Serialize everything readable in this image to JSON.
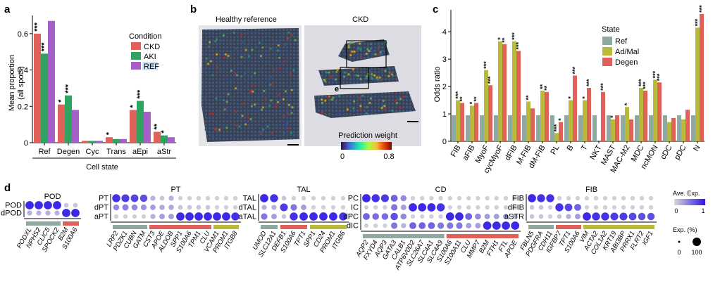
{
  "panels": {
    "a": {
      "letter": "a",
      "legend_title": "Condition",
      "legend": [
        "CKD",
        "AKI",
        "REF"
      ],
      "colors": {
        "CKD": "#e0605a",
        "AKI": "#2fa35f",
        "REF": "#a560c8"
      },
      "chart_data": {
        "type": "bar",
        "title": "",
        "xlabel": "Cell state",
        "ylabel": "Mean proportion\n(all spots)",
        "ylabel_line1": "Mean proportion",
        "ylabel_line2": "(all spots)",
        "ylim": [
          0,
          0.7
        ],
        "yticks": [
          0,
          0.2,
          0.4,
          0.6
        ],
        "ytick_labels": [
          "0",
          "0.2",
          "0.4",
          "0.6"
        ],
        "categories": [
          "Ref",
          "Degen",
          "Cyc",
          "Trans",
          "aEpi",
          "aStr"
        ],
        "series": [
          {
            "name": "CKD",
            "values": [
              0.6,
              0.21,
              0.01,
              0.03,
              0.18,
              0.06
            ]
          },
          {
            "name": "AKI",
            "values": [
              0.49,
              0.26,
              0.01,
              0.02,
              0.23,
              0.04
            ]
          },
          {
            "name": "REF",
            "values": [
              0.67,
              0.18,
              0.01,
              0.02,
              0.17,
              0.03
            ]
          }
        ],
        "annotations": [
          {
            "category": "Ref",
            "series": "CKD",
            "text": "***"
          },
          {
            "category": "Ref",
            "series": "AKI",
            "text": "***"
          },
          {
            "category": "Degen",
            "series": "CKD",
            "text": "*"
          },
          {
            "category": "Degen",
            "series": "AKI",
            "text": "***"
          },
          {
            "category": "Trans",
            "series": "CKD",
            "text": "*"
          },
          {
            "category": "aEpi",
            "series": "CKD",
            "text": "*"
          },
          {
            "category": "aEpi",
            "series": "AKI",
            "text": "***"
          },
          {
            "category": "aStr",
            "series": "CKD",
            "text": "**"
          },
          {
            "category": "aStr",
            "series": "AKI",
            "text": "*"
          }
        ]
      }
    },
    "b": {
      "letter": "b",
      "left_title": "Healthy reference",
      "right_title": "CKD",
      "inset_label": "e",
      "colorbar_title": "Prediction weight",
      "colorbar_min": "0",
      "colorbar_max": "0.8"
    },
    "c": {
      "letter": "c",
      "legend_title": "State",
      "legend": [
        "Ref",
        "Ad/Mal",
        "Degen"
      ],
      "colors": {
        "Ref": "#8fa8a0",
        "Ad/Mal": "#b9b93a",
        "Degen": "#e0605a"
      },
      "chart_data": {
        "type": "bar",
        "title": "",
        "xlabel": "",
        "ylabel": "Odds ratio",
        "ylim": [
          0,
          4.8
        ],
        "yticks": [
          0,
          1,
          2,
          3,
          4
        ],
        "ytick_labels": [
          "0",
          "1",
          "2",
          "3",
          "4"
        ],
        "categories": [
          "FIB",
          "aFIB",
          "MyoF",
          "cycMyoF",
          "dFIB",
          "M-FIB",
          "dM-FIB",
          "PL",
          "B",
          "T",
          "NKT",
          "MAST",
          "MAC-M2",
          "MDC",
          "ncMON",
          "cDC",
          "pDC",
          "N"
        ],
        "series": [
          {
            "name": "Ref",
            "values": [
              0.95,
              0.95,
              0.95,
              0.95,
              0.95,
              0.95,
              0.95,
              0.95,
              0.95,
              0.95,
              0.95,
              0.95,
              0.95,
              0.95,
              0.95,
              0.95,
              0.95,
              0.95
            ]
          },
          {
            "name": "Ad/Mal",
            "values": [
              1.5,
              1.3,
              2.6,
              3.65,
              3.65,
              1.45,
              1.85,
              0.3,
              1.5,
              1.5,
              null,
              0.8,
              1.25,
              1.95,
              2.25,
              0.7,
              0.8,
              4.15
            ]
          },
          {
            "name": "Degen",
            "values": [
              1.4,
              1.4,
              2.05,
              3.55,
              3.3,
              1.2,
              1.8,
              0.7,
              2.4,
              1.95,
              1.8,
              0.95,
              0.8,
              1.85,
              2.15,
              0.85,
              1.15,
              4.65
            ]
          }
        ],
        "annotations": [
          {
            "category": "FIB",
            "series": "Ad/Mal",
            "text": "***"
          },
          {
            "category": "FIB",
            "series": "Degen",
            "text": "**"
          },
          {
            "category": "aFIB",
            "series": "Ad/Mal",
            "text": "*"
          },
          {
            "category": "aFIB",
            "series": "Degen",
            "text": "**"
          },
          {
            "category": "MyoF",
            "series": "Ad/Mal",
            "text": "***"
          },
          {
            "category": "MyoF",
            "series": "Degen",
            "text": "***"
          },
          {
            "category": "cycMyoF",
            "series": "Ad/Mal",
            "text": "*"
          },
          {
            "category": "cycMyoF",
            "series": "Degen",
            "text": "**"
          },
          {
            "category": "dFIB",
            "series": "Ad/Mal",
            "text": "***"
          },
          {
            "category": "dFIB",
            "series": "Degen",
            "text": "***"
          },
          {
            "category": "M-FIB",
            "series": "Ad/Mal",
            "text": "**"
          },
          {
            "category": "dM-FIB",
            "series": "Ad/Mal",
            "text": "**"
          },
          {
            "category": "dM-FIB",
            "series": "Degen",
            "text": "**"
          },
          {
            "category": "PL",
            "series": "Ad/Mal",
            "text": "***"
          },
          {
            "category": "PL",
            "series": "Degen",
            "text": "*"
          },
          {
            "category": "B",
            "series": "Ad/Mal",
            "text": "*"
          },
          {
            "category": "B",
            "series": "Degen",
            "text": "***"
          },
          {
            "category": "T",
            "series": "Ad/Mal",
            "text": "*"
          },
          {
            "category": "T",
            "series": "Degen",
            "text": "***"
          },
          {
            "category": "NKT",
            "series": "Degen",
            "text": "***"
          },
          {
            "category": "MAST",
            "series": "Ad/Mal",
            "text": "*"
          },
          {
            "category": "MAC-M2",
            "series": "Ad/Mal",
            "text": "*"
          },
          {
            "category": "MDC",
            "series": "Ad/Mal",
            "text": "***"
          },
          {
            "category": "MDC",
            "series": "Degen",
            "text": "***"
          },
          {
            "category": "ncMON",
            "series": "Ad/Mal",
            "text": "***"
          },
          {
            "category": "ncMON",
            "series": "Degen",
            "text": "***"
          },
          {
            "category": "N",
            "series": "Ad/Mal",
            "text": "***"
          },
          {
            "category": "N",
            "series": "Degen",
            "text": "***"
          }
        ]
      }
    },
    "d": {
      "letter": "d",
      "groups": [
        {
          "title": "POD",
          "rows": [
            "POD",
            "dPOD"
          ],
          "genes": [
            "PODXL",
            "NPHS2",
            "CLIC5",
            "SPOCK2",
            "B2M",
            "S100A6"
          ],
          "bars": [
            {
              "span": [
                0,
                3
              ],
              "color": "#8fa8a0"
            },
            {
              "span": [
                4,
                5
              ],
              "color": "#e0605a"
            }
          ],
          "values": [
            [
              0.9,
              0.9,
              0.9,
              0.9,
              0.1,
              0.1
            ],
            [
              0.2,
              0.2,
              0.2,
              0.2,
              0.9,
              0.9
            ]
          ]
        },
        {
          "title": "PT",
          "rows": [
            "PT",
            "dPT",
            "aPT"
          ],
          "genes": [
            "LRP2",
            "PDZK1",
            "CUBN",
            "GATM",
            "CST3",
            "APOE",
            "ALDOB",
            "SPP1",
            "S100A6",
            "TPM1",
            "CLU",
            "VCAM1",
            "PROM1",
            "ITGB8"
          ],
          "bars": [
            {
              "span": [
                0,
                3
              ],
              "color": "#8fa8a0"
            },
            {
              "span": [
                4,
                10
              ],
              "color": "#e0605a"
            },
            {
              "span": [
                11,
                13
              ],
              "color": "#b9b93a"
            }
          ],
          "values": [
            [
              0.85,
              0.8,
              0.75,
              0.7,
              0.2,
              0.1,
              0.2,
              0.05,
              0.05,
              0.05,
              0.05,
              0.05,
              0.05,
              0.05
            ],
            [
              0.4,
              0.45,
              0.4,
              0.35,
              0.3,
              0.25,
              0.25,
              0.1,
              0.1,
              0.1,
              0.1,
              0.05,
              0.05,
              0.05
            ],
            [
              0.05,
              0.05,
              0.05,
              0.05,
              0.2,
              0.3,
              0.3,
              0.9,
              0.9,
              0.9,
              0.9,
              0.9,
              0.9,
              0.85
            ]
          ]
        },
        {
          "title": "TAL",
          "rows": [
            "TAL",
            "dTAL",
            "aTAL"
          ],
          "genes": [
            "UMOD",
            "SLC12A1",
            "DEFB1",
            "S100A6",
            "TPT1",
            "SPP1",
            "CD24",
            "PROM1",
            "ITGB6"
          ],
          "bars": [
            {
              "span": [
                0,
                1
              ],
              "color": "#8fa8a0"
            },
            {
              "span": [
                2,
                4
              ],
              "color": "#e0605a"
            },
            {
              "span": [
                5,
                8
              ],
              "color": "#b9b93a"
            }
          ],
          "values": [
            [
              0.9,
              0.85,
              0.1,
              0.05,
              0.05,
              0.05,
              0.05,
              0.05,
              0.05
            ],
            [
              0.2,
              0.2,
              0.8,
              0.5,
              0.3,
              0.05,
              0.05,
              0.05,
              0.05
            ],
            [
              0.5,
              0.3,
              0.1,
              0.85,
              0.9,
              0.9,
              0.9,
              0.9,
              0.85
            ]
          ]
        },
        {
          "title": "CD",
          "rows": [
            "PC",
            "IC",
            "dPC",
            "dIC"
          ],
          "genes": [
            "AQP2",
            "FXYD4",
            "AQP3",
            "GATA3",
            "CALB1",
            "ATP6V0D2",
            "SLC26A7",
            "SLC4A1",
            "SLC4A9",
            "S100A6",
            "S100A11",
            "CLU",
            "MMP7",
            "B2M",
            "FTH1",
            "FTL",
            "APOE"
          ],
          "bars": [
            {
              "span": [
                0,
                8
              ],
              "color": "#8fa8a0"
            },
            {
              "span": [
                9,
                16
              ],
              "color": "#e0605a"
            }
          ],
          "values": [
            [
              0.9,
              0.85,
              0.8,
              0.6,
              0.4,
              0.05,
              0.05,
              0.05,
              0.05,
              0.05,
              0.05,
              0.05,
              0.05,
              0.05,
              0.05,
              0.05,
              0.05
            ],
            [
              0.05,
              0.05,
              0.05,
              0.5,
              0.3,
              0.9,
              0.9,
              0.9,
              0.85,
              0.05,
              0.05,
              0.05,
              0.05,
              0.05,
              0.05,
              0.05,
              0.05
            ],
            [
              0.6,
              0.55,
              0.55,
              0.7,
              0.4,
              0.05,
              0.05,
              0.05,
              0.05,
              0.9,
              0.9,
              0.6,
              0.4,
              0.3,
              0.3,
              0.3,
              0.2
            ],
            [
              0.05,
              0.05,
              0.05,
              0.5,
              0.2,
              0.6,
              0.6,
              0.6,
              0.5,
              0.5,
              0.5,
              0.3,
              0.3,
              0.9,
              0.9,
              0.9,
              0.9
            ]
          ]
        },
        {
          "title": "FIB",
          "rows": [
            "FIB",
            "dFIB",
            "aSTR"
          ],
          "genes": [
            "FBLN5",
            "PDGFRA",
            "CDH11",
            "IGFBP7",
            "TPT1",
            "S100A6",
            "VIM",
            "ACTA2",
            "COL1A2",
            "KRT19",
            "ABI3BP",
            "PRRX1",
            "FLRT2",
            "IGF1"
          ],
          "bars": [
            {
              "span": [
                0,
                2
              ],
              "color": "#8fa8a0"
            },
            {
              "span": [
                3,
                5
              ],
              "color": "#e0605a"
            },
            {
              "span": [
                6,
                13
              ],
              "color": "#b9b93a"
            }
          ],
          "values": [
            [
              0.9,
              0.85,
              0.85,
              0.05,
              0.05,
              0.05,
              0.05,
              0.05,
              0.05,
              0.05,
              0.05,
              0.05,
              0.05,
              0.05
            ],
            [
              0.1,
              0.1,
              0.05,
              0.85,
              0.75,
              0.6,
              0.05,
              0.05,
              0.05,
              0.05,
              0.05,
              0.05,
              0.05,
              0.05
            ],
            [
              0.1,
              0.1,
              0.05,
              0.1,
              0.2,
              0.3,
              0.9,
              0.85,
              0.85,
              0.8,
              0.8,
              0.75,
              0.7,
              0.7
            ]
          ]
        }
      ],
      "legend_expr_title": "Ave. Exp.",
      "legend_expr_min": "0",
      "legend_expr_max": "1",
      "legend_size_title": "Exp. (%)",
      "legend_size_min": "0",
      "legend_size_max": "100"
    }
  }
}
